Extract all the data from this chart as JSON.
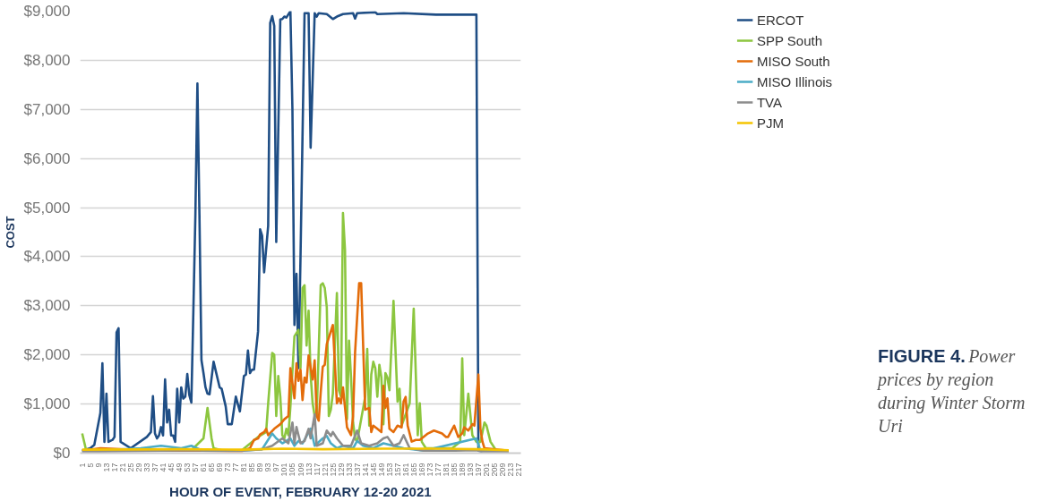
{
  "chart_data": {
    "type": "line",
    "xlabel": "HOUR OF EVENT, FEBRUARY 12-20 2021",
    "ylabel": "COST",
    "annotations": [
      "FIGURE 4.",
      "Power prices by region during Winter Storm Uri"
    ],
    "xlim": [
      0,
      218
    ],
    "xticks": [
      1,
      5,
      9,
      13,
      17,
      21,
      25,
      29,
      33,
      37,
      41,
      45,
      49,
      53,
      57,
      61,
      65,
      69,
      73,
      77,
      81,
      85,
      89,
      93,
      97,
      101,
      105,
      109,
      113,
      117,
      121,
      125,
      129,
      133,
      137,
      141,
      145,
      149,
      153,
      157,
      161,
      165,
      169,
      173,
      177,
      181,
      185,
      189,
      193,
      197,
      201,
      205,
      209,
      213,
      217
    ],
    "ylim": [
      0,
      9000
    ],
    "yticks": [
      {
        "value": 0,
        "label": "$0"
      },
      {
        "value": 1000,
        "label": "$1,000"
      },
      {
        "value": 2000,
        "label": "$2,000"
      },
      {
        "value": 3000,
        "label": "$3,000"
      },
      {
        "value": 4000,
        "label": "$4,000"
      },
      {
        "value": 5000,
        "label": "$5,000"
      },
      {
        "value": 6000,
        "label": "$6,000"
      },
      {
        "value": 7000,
        "label": "$7,000"
      },
      {
        "value": 8000,
        "label": "$8,000"
      },
      {
        "value": 9000,
        "label": "$9,000"
      }
    ],
    "grid": "y",
    "legend": "top right",
    "line_style": "solid",
    "series": [
      {
        "name": "ERCOT",
        "color": "#1f4e85",
        "x": [
          1,
          5,
          7,
          10,
          11,
          12,
          13,
          14,
          16,
          17,
          18,
          19,
          20,
          25,
          33,
          35,
          36,
          37,
          38,
          39,
          40,
          41,
          42,
          43,
          44,
          45,
          46,
          47,
          48,
          49,
          50,
          51,
          52,
          53,
          54,
          55,
          56,
          57,
          58,
          59,
          60,
          61,
          62,
          63,
          64,
          66,
          69,
          70,
          72,
          73,
          75,
          77,
          79,
          81,
          82,
          83,
          84,
          85,
          86,
          88,
          89,
          90,
          91,
          93,
          94,
          95,
          96,
          97,
          99,
          100,
          101,
          102,
          104,
          105,
          106,
          107,
          108,
          109,
          111,
          113,
          114,
          116,
          117,
          118,
          122,
          125,
          127,
          130,
          135,
          136,
          137,
          146,
          147,
          160,
          176,
          184,
          193,
          196,
          197,
          200,
          212
        ],
        "values": [
          50,
          100,
          170,
          820,
          1830,
          230,
          1210,
          230,
          270,
          330,
          2460,
          2545,
          230,
          100,
          330,
          430,
          1160,
          400,
          300,
          360,
          530,
          360,
          1500,
          625,
          885,
          360,
          360,
          230,
          1310,
          625,
          1340,
          1110,
          1150,
          1610,
          1180,
          1030,
          2900,
          4860,
          7530,
          4860,
          1895,
          1630,
          1340,
          1210,
          1200,
          1860,
          1340,
          1310,
          950,
          590,
          590,
          1150,
          850,
          1570,
          1600,
          2090,
          1630,
          1700,
          1700,
          2480,
          4560,
          4430,
          3680,
          4630,
          8760,
          8900,
          8700,
          4300,
          8830,
          8840,
          8890,
          8870,
          9000,
          7000,
          2610,
          3650,
          1730,
          4000,
          8960,
          8960,
          6220,
          8960,
          8890,
          8960,
          8940,
          8840,
          8890,
          8940,
          8960,
          8850,
          8960,
          8980,
          8940,
          8960,
          8930,
          8930,
          8930,
          8930,
          50,
          20,
          10
        ]
      },
      {
        "name": "SPP South",
        "color": "#8cc63f",
        "x": [
          1,
          3,
          20,
          40,
          55,
          61,
          63,
          65,
          66,
          70,
          80,
          88,
          92,
          93,
          95,
          96,
          97,
          98,
          99,
          100,
          101,
          102,
          103,
          104,
          106,
          108,
          109,
          110,
          111,
          112,
          113,
          114,
          115,
          116,
          117,
          119,
          120,
          121,
          122,
          123,
          124,
          125,
          127,
          128,
          129,
          130,
          131,
          132,
          133,
          134,
          135,
          136,
          137,
          141,
          142,
          143,
          144,
          145,
          146,
          147,
          148,
          149,
          150,
          151,
          152,
          153,
          155,
          157,
          158,
          159,
          163,
          165,
          167,
          168,
          169,
          171,
          184,
          188,
          189,
          190,
          192,
          194,
          196,
          198,
          200,
          201,
          203,
          206,
          212
        ],
        "values": [
          400,
          50,
          60,
          60,
          60,
          300,
          920,
          300,
          100,
          60,
          60,
          330,
          430,
          1015,
          2040,
          2005,
          755,
          1570,
          1150,
          365,
          300,
          495,
          365,
          950,
          2380,
          2510,
          1730,
          3360,
          3420,
          2190,
          2900,
          1600,
          1015,
          755,
          755,
          3420,
          3460,
          3360,
          2970,
          755,
          885,
          1210,
          3260,
          1280,
          1150,
          4890,
          4140,
          690,
          2290,
          1540,
          625,
          300,
          230,
          1150,
          2120,
          560,
          1600,
          1860,
          1730,
          1150,
          1800,
          1540,
          590,
          1630,
          1540,
          1280,
          3100,
          1050,
          1310,
          560,
          1015,
          2940,
          365,
          1015,
          230,
          100,
          100,
          230,
          1930,
          365,
          1210,
          365,
          230,
          230,
          625,
          560,
          230,
          40,
          20
        ]
      },
      {
        "name": "MISO South",
        "color": "#e36c0a",
        "x": [
          1,
          10,
          20,
          40,
          60,
          80,
          84,
          86,
          88,
          89,
          91,
          92,
          93,
          96,
          99,
          101,
          103,
          104,
          106,
          107,
          108,
          109,
          110,
          111,
          112,
          113,
          115,
          116,
          117,
          118,
          119,
          120,
          121,
          122,
          125,
          127,
          128,
          129,
          130,
          132,
          134,
          135,
          136,
          138,
          139,
          141,
          143,
          144,
          145,
          147,
          149,
          150,
          151,
          152,
          153,
          155,
          157,
          159,
          160,
          161,
          162,
          164,
          166,
          168,
          172,
          175,
          179,
          181,
          182,
          185,
          187,
          189,
          190,
          192,
          194,
          195,
          197,
          198,
          199,
          200,
          212
        ],
        "values": [
          50,
          100,
          80,
          50,
          50,
          40,
          100,
          270,
          300,
          380,
          430,
          495,
          365,
          495,
          590,
          690,
          755,
          1730,
          1115,
          1830,
          1470,
          1700,
          1080,
          1540,
          1440,
          1990,
          1500,
          1890,
          755,
          660,
          1240,
          1760,
          1800,
          2220,
          2610,
          1015,
          1115,
          1015,
          1340,
          525,
          365,
          755,
          2060,
          3460,
          3460,
          885,
          920,
          430,
          560,
          495,
          430,
          1370,
          920,
          1115,
          495,
          430,
          560,
          525,
          1050,
          1145,
          560,
          235,
          270,
          270,
          400,
          460,
          400,
          330,
          330,
          560,
          330,
          400,
          525,
          460,
          590,
          560,
          1600,
          495,
          235,
          100,
          50
        ]
      },
      {
        "name": "MISO Illinois",
        "color": "#4bacc6",
        "x": [
          1,
          30,
          40,
          50,
          55,
          60,
          80,
          90,
          95,
          97,
          100,
          104,
          106,
          108,
          110,
          112,
          114,
          116,
          120,
          122,
          124,
          127,
          130,
          135,
          137,
          140,
          145,
          150,
          160,
          170,
          196,
          198,
          212
        ],
        "values": [
          30,
          100,
          150,
          100,
          150,
          60,
          50,
          80,
          400,
          300,
          200,
          300,
          150,
          250,
          200,
          350,
          500,
          150,
          300,
          350,
          200,
          100,
          150,
          100,
          250,
          150,
          100,
          200,
          100,
          50,
          300,
          50,
          20
        ]
      },
      {
        "name": "TVA",
        "color": "#8c8c8c",
        "x": [
          1,
          40,
          60,
          80,
          90,
          95,
          100,
          103,
          105,
          106,
          107,
          109,
          111,
          113,
          114,
          116,
          117,
          120,
          122,
          124,
          125,
          127,
          130,
          134,
          137,
          139,
          143,
          147,
          150,
          152,
          155,
          158,
          160,
          163,
          170,
          185,
          196,
          200,
          212
        ],
        "values": [
          30,
          50,
          60,
          50,
          80,
          150,
          300,
          200,
          625,
          200,
          530,
          200,
          250,
          495,
          300,
          790,
          150,
          200,
          460,
          350,
          430,
          300,
          150,
          150,
          460,
          200,
          150,
          200,
          300,
          330,
          150,
          200,
          365,
          100,
          50,
          50,
          60,
          30,
          20
        ]
      },
      {
        "name": "PJM",
        "color": "#f5c400",
        "x": [
          1,
          50,
          80,
          100,
          120,
          150,
          180,
          197,
          212
        ],
        "values": [
          70,
          80,
          70,
          90,
          80,
          90,
          90,
          80,
          60
        ]
      }
    ]
  }
}
